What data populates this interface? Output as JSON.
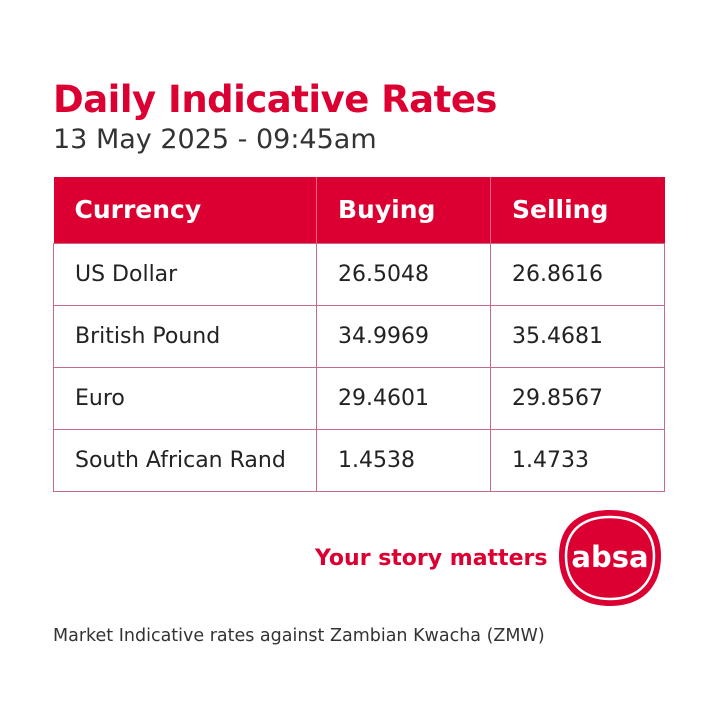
{
  "header": {
    "title": "Daily Indicative Rates",
    "subtitle": "13 May 2025 - 09:45am"
  },
  "table": {
    "columns": [
      "Currency",
      "Buying",
      "Selling"
    ],
    "rows": [
      {
        "currency": "US Dollar",
        "buying": "26.5048",
        "selling": "26.8616"
      },
      {
        "currency": "British Pound",
        "buying": "34.9969",
        "selling": "35.4681"
      },
      {
        "currency": "Euro",
        "buying": "29.4601",
        "selling": "29.8567"
      },
      {
        "currency": "South African Rand",
        "buying": "1.4538",
        "selling": "1.4733"
      }
    ]
  },
  "brand": {
    "tagline": "Your story matters",
    "logo_text": "absa",
    "logo_icon": "absa-logo-icon",
    "accent_color": "#dc0032"
  },
  "footer": {
    "note": "Market Indicative rates against Zambian Kwacha (ZMW)"
  }
}
